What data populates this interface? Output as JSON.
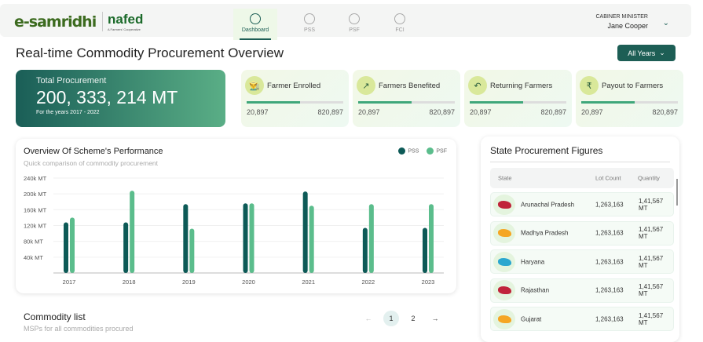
{
  "header": {
    "logo": "e-samridhi",
    "partner_logo": "nafed",
    "partner_tagline": "A Farmers' Cooperative",
    "nav": [
      {
        "label": "Dashboard",
        "icon": "pie-chart-icon",
        "active": true
      },
      {
        "label": "PSS",
        "icon": "coins-icon"
      },
      {
        "label": "PSF",
        "icon": "rupee-icon"
      },
      {
        "label": "FCI",
        "icon": "bowl-icon"
      }
    ],
    "user_role": "CABINER MINISTER",
    "user_name": "Jane Cooper"
  },
  "page_title": "Real-time Commodity Procurement Overview",
  "year_filter": "All Years",
  "total": {
    "label": "Total Procurement",
    "value": "200, 333, 214 MT",
    "sub": "For the years 2017 - 2022"
  },
  "cards": [
    {
      "title": "Farmer Enrolled",
      "icon": "farmer-icon",
      "min": "20,897",
      "max": "820,897",
      "progress": 0.55
    },
    {
      "title": "Farmers Benefited",
      "icon": "trend-up-icon",
      "min": "20,897",
      "max": "820,897",
      "progress": 0.55
    },
    {
      "title": "Returning Farmers",
      "icon": "return-arrow-icon",
      "min": "20,897",
      "max": "820,897",
      "progress": 0.55
    },
    {
      "title": "Payout to Farmers",
      "icon": "money-bag-icon",
      "min": "20,897",
      "max": "820,897",
      "progress": 0.55
    }
  ],
  "chart_data": {
    "type": "bar",
    "title": "Overview Of Scheme's Performance",
    "subtitle": "Quick comparison of commodity procurement",
    "categories": [
      "2017",
      "2018",
      "2019",
      "2020",
      "2021",
      "2022",
      "2023"
    ],
    "series": [
      {
        "name": "PSS",
        "color": "#0d5a57",
        "values": [
          128,
          128,
          174,
          176,
          206,
          114,
          114
        ]
      },
      {
        "name": "PSF",
        "color": "#5bbd8c",
        "values": [
          140,
          208,
          112,
          176,
          170,
          174,
          174
        ]
      }
    ],
    "yticks": [
      "40k MT",
      "80k MT",
      "120k MT",
      "160k MT",
      "200k MT",
      "240k MT"
    ],
    "ylim": [
      0,
      240
    ],
    "grid": true,
    "legend": "top-right"
  },
  "states": {
    "title": "State Procurement Figures",
    "headers": [
      "State",
      "Lot Count",
      "Quantity"
    ],
    "rows": [
      {
        "name": "Arunachal Pradesh",
        "lots": "1,263,163",
        "qty": "1,41,567 MT",
        "color": "#c0243a"
      },
      {
        "name": "Madhya Pradesh",
        "lots": "1,263,163",
        "qty": "1,41,567 MT",
        "color": "#f5a623"
      },
      {
        "name": "Haryana",
        "lots": "1,263,163",
        "qty": "1,41,567 MT",
        "color": "#2aa7cf"
      },
      {
        "name": "Rajasthan",
        "lots": "1,263,163",
        "qty": "1,41,567 MT",
        "color": "#c0243a"
      },
      {
        "name": "Gujarat",
        "lots": "1,263,163",
        "qty": "1,41,567 MT",
        "color": "#f5a623"
      }
    ]
  },
  "commodity": {
    "title": "Commodity list",
    "subtitle": "MSPs for all commodities procured",
    "pages": [
      "1",
      "2"
    ],
    "prev": "←",
    "next": "→"
  }
}
